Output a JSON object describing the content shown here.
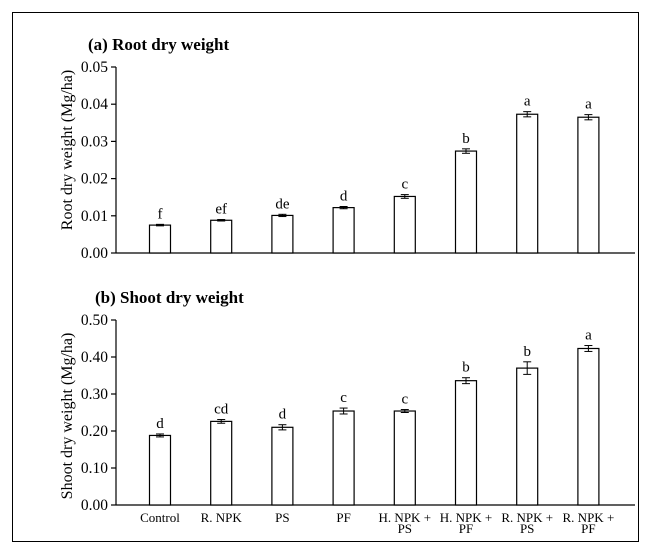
{
  "chart_data": [
    {
      "type": "bar",
      "title": "(a) Root dry weight",
      "ylabel": "Root dry weight (Mg/ha)",
      "xlabel": "",
      "ylim": [
        0,
        0.05
      ],
      "yticks": [
        "0.00",
        "0.01",
        "0.02",
        "0.03",
        "0.04",
        "0.05"
      ],
      "grid": false,
      "categories": [
        "Control",
        "R. NPK",
        "PS",
        "PF",
        "H. NPK + PS",
        "H. NPK + PF",
        "R. NPK + PS",
        "R. NPK + PF"
      ],
      "values": [
        0.0075,
        0.0088,
        0.0101,
        0.0122,
        0.0152,
        0.0274,
        0.0373,
        0.0365
      ],
      "errors": [
        0.0002,
        0.0002,
        0.0003,
        0.0003,
        0.0005,
        0.0006,
        0.0007,
        0.0007
      ],
      "letters": [
        "f",
        "ef",
        "de",
        "d",
        "c",
        "b",
        "a",
        "a"
      ]
    },
    {
      "type": "bar",
      "title": "(b) Shoot dry weight",
      "ylabel": "Shoot dry weight (Mg/ha)",
      "xlabel": "",
      "ylim": [
        0,
        0.5
      ],
      "yticks": [
        "0.00",
        "0.10",
        "0.20",
        "0.30",
        "0.40",
        "0.50"
      ],
      "grid": false,
      "categories": [
        "Control",
        "R. NPK",
        "PS",
        "PF",
        "H. NPK + PS",
        "H. NPK + PF",
        "R. NPK + PS",
        "R. NPK + PF"
      ],
      "category_lines": [
        [
          "Control"
        ],
        [
          "R. NPK"
        ],
        [
          "PS"
        ],
        [
          "PF"
        ],
        [
          "H. NPK +",
          "PS"
        ],
        [
          "H. NPK +",
          "PF"
        ],
        [
          "R. NPK +",
          "PS"
        ],
        [
          "R. NPK +",
          "PF"
        ]
      ],
      "values": [
        0.188,
        0.226,
        0.21,
        0.254,
        0.254,
        0.336,
        0.37,
        0.423
      ],
      "errors": [
        0.004,
        0.005,
        0.007,
        0.008,
        0.004,
        0.008,
        0.017,
        0.008
      ],
      "letters": [
        "d",
        "cd",
        "d",
        "c",
        "c",
        "b",
        "b",
        "a"
      ]
    }
  ]
}
